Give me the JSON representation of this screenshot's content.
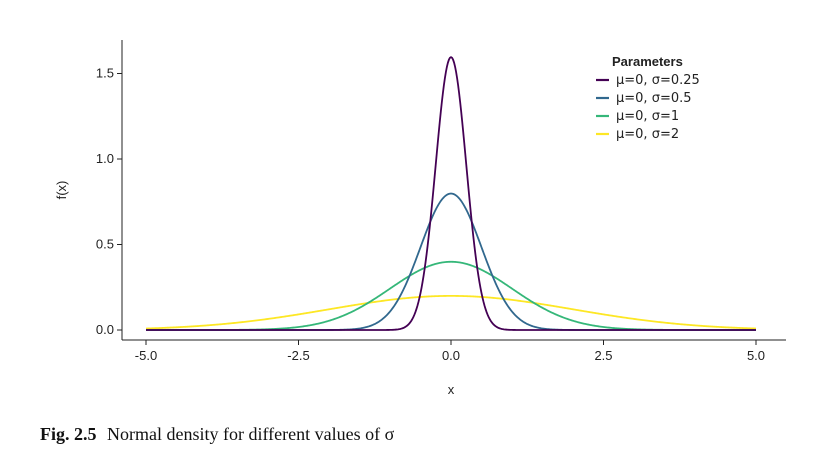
{
  "chart_data": {
    "type": "line",
    "x_label": "x",
    "y_label": "f(x)",
    "xlim": [
      -5,
      5
    ],
    "ylim": [
      0,
      1.65
    ],
    "x_ticks": [
      {
        "value": -5,
        "label": "-5.0"
      },
      {
        "value": -2.5,
        "label": "-2.5"
      },
      {
        "value": 0,
        "label": "0.0"
      },
      {
        "value": 2.5,
        "label": "2.5"
      },
      {
        "value": 5,
        "label": "5.0"
      }
    ],
    "y_ticks": [
      {
        "value": 0,
        "label": "0.0"
      },
      {
        "value": 0.5,
        "label": "0.5"
      },
      {
        "value": 1,
        "label": "1.0"
      },
      {
        "value": 1.5,
        "label": "1.5"
      }
    ],
    "grid": false,
    "legend": {
      "title": "Parameters",
      "position": "top-right"
    },
    "series": [
      {
        "name": "μ=0,  σ=0.25",
        "mu": 0,
        "sigma": 0.25,
        "color": "#440154"
      },
      {
        "name": "μ=0,  σ=0.5",
        "mu": 0,
        "sigma": 0.5,
        "color": "#31688e"
      },
      {
        "name": "μ=0,  σ=1",
        "mu": 0,
        "sigma": 1,
        "color": "#35b779"
      },
      {
        "name": "μ=0,  σ=2",
        "mu": 0,
        "sigma": 2,
        "color": "#fde725"
      }
    ]
  },
  "caption": {
    "label": "Fig. 2.5",
    "text": "Normal density for different values of σ"
  }
}
